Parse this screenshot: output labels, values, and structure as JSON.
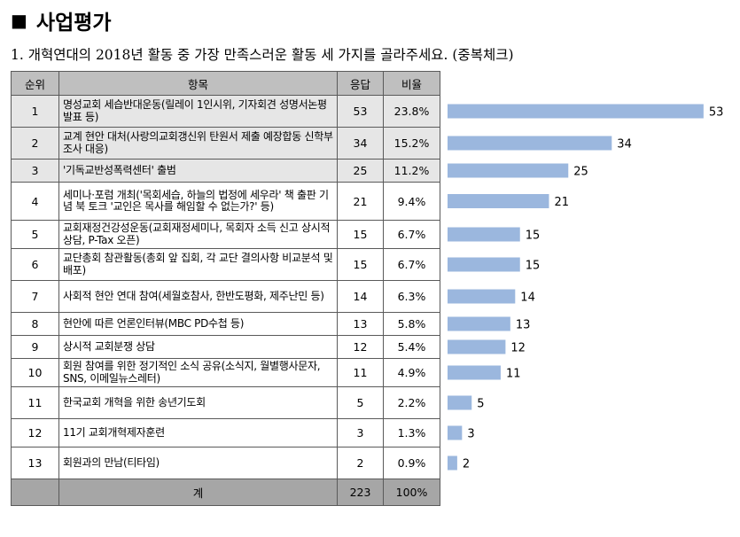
{
  "section_title": "사업평가",
  "question": "1. 개혁연대의 2018년 활동 중 가장 만족스러운 활동 세 가지를 골라주세요. (중복체크)",
  "table": {
    "headers": [
      "순위",
      "항목",
      "응답",
      "비율"
    ],
    "rows": [
      {
        "rank": "1",
        "item": "명성교회 세습반대운동(릴레이 1인시위, 기자회견 성명서논평 발표 등)",
        "count": "53",
        "pct": "23.8%"
      },
      {
        "rank": "2",
        "item": "교계 현안 대처(사랑의교회갱신위 탄원서 제출 예장합동 신학부 조사 대응)",
        "count": "34",
        "pct": "15.2%"
      },
      {
        "rank": "3",
        "item": "'기독교반성폭력센터' 출범",
        "count": "25",
        "pct": "11.2%"
      },
      {
        "rank": "4",
        "item": "세미나·포럼 개최('목회세습, 하늘의 법정에 세우라' 책 출판 기념 북 토크 '교인은 목사를 해임할 수 없는가?' 등)",
        "count": "21",
        "pct": "9.4%"
      },
      {
        "rank": "5",
        "item": "교회재정건강성운동(교회재정세미나, 목회자 소득 신고 상시적 상담, P-Tax 오픈)",
        "count": "15",
        "pct": "6.7%"
      },
      {
        "rank": "6",
        "item": "교단총회 참관활동(총회 앞 집회, 각 교단 결의사항 비교분석 및 배포)",
        "count": "15",
        "pct": "6.7%"
      },
      {
        "rank": "7",
        "item": "사회적 현안 연대 참여(세월호참사, 한반도평화, 제주난민 등)",
        "count": "14",
        "pct": "6.3%"
      },
      {
        "rank": "8",
        "item": "현안에 따른 언론인터뷰(MBC PD수첩 등)",
        "count": "13",
        "pct": "5.8%"
      },
      {
        "rank": "9",
        "item": "상시적 교회분쟁 상담",
        "count": "12",
        "pct": "5.4%"
      },
      {
        "rank": "10",
        "item": "회원 참여를 위한 정기적인 소식 공유(소식지, 월별행사문자, SNS, 이메일뉴스레터)",
        "count": "11",
        "pct": "4.9%"
      },
      {
        "rank": "11",
        "item": "한국교회 개혁을 위한 송년기도회",
        "count": "5",
        "pct": "2.2%"
      },
      {
        "rank": "12",
        "item": "11기 교회개혁제자훈련",
        "count": "3",
        "pct": "1.3%"
      },
      {
        "rank": "13",
        "item": "회원과의 만남(티타임)",
        "count": "2",
        "pct": "0.9%"
      }
    ],
    "total": {
      "label": "계",
      "count": "223",
      "pct": "100%"
    }
  },
  "chart_data": {
    "type": "bar",
    "orientation": "horizontal",
    "categories": [
      "1",
      "2",
      "3",
      "4",
      "5",
      "6",
      "7",
      "8",
      "9",
      "10",
      "11",
      "12",
      "13"
    ],
    "values": [
      53,
      34,
      25,
      21,
      15,
      15,
      14,
      13,
      12,
      11,
      5,
      3,
      2
    ],
    "data_labels": true,
    "bar_color": "#9bb7de",
    "grid": false
  },
  "colors": {
    "header_bg": "#bfbfbf",
    "shaded_row_bg": "#e6e6e6",
    "total_bg": "#a6a6a6",
    "bar": "#9bb7de"
  }
}
